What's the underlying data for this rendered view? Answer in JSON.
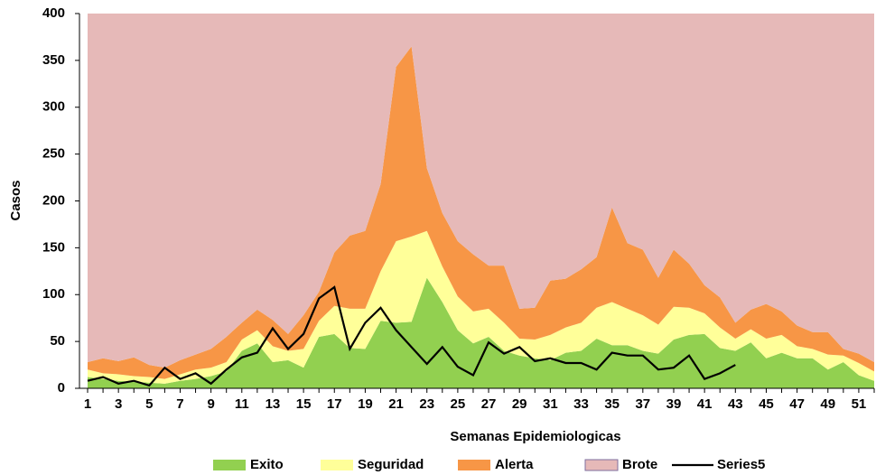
{
  "chart_data": {
    "type": "stacked_area_line",
    "x_label": "Semanas Epidemiologicas",
    "y_label": "Casos",
    "categories": [
      1,
      null,
      3,
      null,
      5,
      null,
      7,
      null,
      9,
      null,
      11,
      null,
      13,
      null,
      15,
      null,
      17,
      null,
      19,
      null,
      21,
      null,
      23,
      null,
      25,
      null,
      27,
      null,
      29,
      null,
      31,
      null,
      33,
      null,
      35,
      null,
      37,
      null,
      39,
      null,
      41,
      null,
      43,
      null,
      45,
      null,
      47,
      null,
      49,
      null,
      51,
      null
    ],
    "ylim": [
      0,
      400
    ],
    "yticks": [
      0,
      50,
      100,
      150,
      200,
      250,
      300,
      350,
      400
    ],
    "series": [
      {
        "name": "Exito",
        "color": "#92d050",
        "kind": "area",
        "values": [
          12,
          10,
          8,
          7,
          6,
          5,
          8,
          10,
          13,
          18,
          40,
          48,
          28,
          30,
          22,
          55,
          58,
          43,
          42,
          72,
          70,
          71,
          118,
          92,
          62,
          48,
          55,
          40,
          35,
          32,
          30,
          38,
          40,
          53,
          46,
          46,
          40,
          37,
          52,
          57,
          58,
          43,
          40,
          49,
          32,
          38,
          32,
          32,
          20,
          28,
          14,
          8
        ]
      },
      {
        "name": "Seguridad",
        "color": "#ffff99",
        "kind": "area",
        "values": [
          8,
          6,
          7,
          6,
          6,
          5,
          7,
          10,
          9,
          10,
          12,
          14,
          17,
          10,
          20,
          17,
          30,
          42,
          43,
          53,
          87,
          91,
          50,
          38,
          36,
          34,
          30,
          30,
          18,
          20,
          27,
          27,
          30,
          33,
          46,
          39,
          38,
          31,
          35,
          29,
          22,
          22,
          13,
          14,
          21,
          19,
          13,
          10,
          16,
          7,
          13,
          10
        ]
      },
      {
        "name": "Alerta",
        "color": "#f79646",
        "kind": "area",
        "values": [
          8,
          16,
          14,
          20,
          13,
          12,
          15,
          16,
          20,
          27,
          18,
          22,
          28,
          18,
          36,
          31,
          57,
          78,
          83,
          93,
          186,
          203,
          67,
          57,
          59,
          61,
          46,
          61,
          32,
          34,
          58,
          52,
          57,
          54,
          101,
          70,
          70,
          50,
          61,
          47,
          30,
          32,
          17,
          21,
          37,
          25,
          22,
          18,
          24,
          7,
          10,
          10
        ]
      },
      {
        "name": "Brote",
        "color": "#e6b9b8",
        "kind": "area",
        "values": [
          372,
          368,
          371,
          367,
          375,
          378,
          370,
          364,
          358,
          345,
          330,
          316,
          327,
          342,
          322,
          297,
          255,
          237,
          232,
          182,
          57,
          35,
          165,
          213,
          243,
          257,
          269,
          269,
          315,
          314,
          285,
          283,
          273,
          260,
          207,
          245,
          252,
          282,
          252,
          267,
          290,
          303,
          330,
          316,
          310,
          318,
          333,
          340,
          340,
          358,
          363,
          372
        ]
      },
      {
        "name": "Series5",
        "color": "#000000",
        "kind": "line",
        "values": [
          8,
          12,
          5,
          8,
          3,
          22,
          10,
          16,
          5,
          20,
          33,
          38,
          64,
          42,
          58,
          96,
          108,
          42,
          70,
          86,
          62,
          44,
          26,
          44,
          23,
          14,
          49,
          37,
          44,
          29,
          32,
          27,
          27,
          20,
          38,
          35,
          35,
          20,
          22,
          35,
          10,
          16,
          25,
          null,
          null,
          null,
          null,
          null,
          null,
          null,
          null,
          null
        ]
      }
    ]
  }
}
